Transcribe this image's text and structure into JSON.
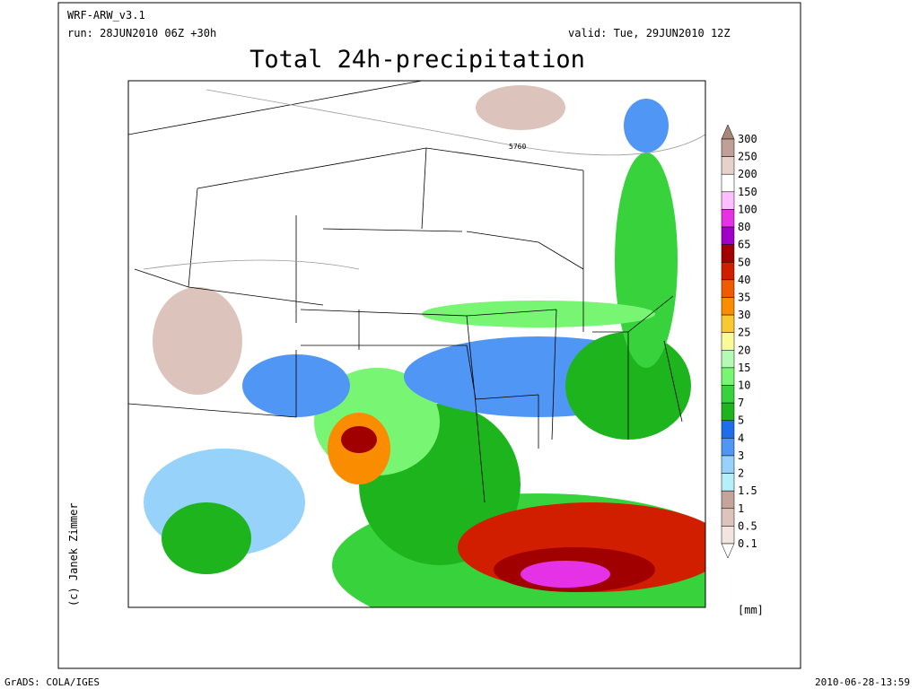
{
  "header": {
    "model": "WRF-ARW_v3.1",
    "run": "run: 28JUN2010 06Z +30h",
    "valid": "valid: Tue, 29JUN2010 12Z",
    "title": "Total 24h-precipitation"
  },
  "map": {
    "contour_label": "5760",
    "credit": "(c) Janek Zimmer"
  },
  "legend": {
    "levels": [
      "300",
      "250",
      "200",
      "150",
      "100",
      "80",
      "65",
      "50",
      "40",
      "35",
      "30",
      "25",
      "20",
      "15",
      "10",
      "7",
      "5",
      "4",
      "3",
      "2",
      "1.5",
      "1",
      "0.5",
      "0.1"
    ],
    "colors": [
      "#a88878",
      "#c0a096",
      "#e6d2ca",
      "#ffffff",
      "#ffbeff",
      "#e632e6",
      "#a000c8",
      "#a00000",
      "#d21e00",
      "#f05a00",
      "#fa8c00",
      "#fac832",
      "#fafa96",
      "#b4fab4",
      "#78f573",
      "#37d23c",
      "#1eb41e",
      "#1e6eeb",
      "#5096f5",
      "#96d2fa",
      "#b4f0fa",
      "#c4a49c",
      "#dcc4bc",
      "#f2e4de",
      "#ffffff"
    ],
    "unit": "[mm]"
  },
  "footer": {
    "left": "GrADS: COLA/IGES",
    "right": "2010-06-28-13:59"
  }
}
